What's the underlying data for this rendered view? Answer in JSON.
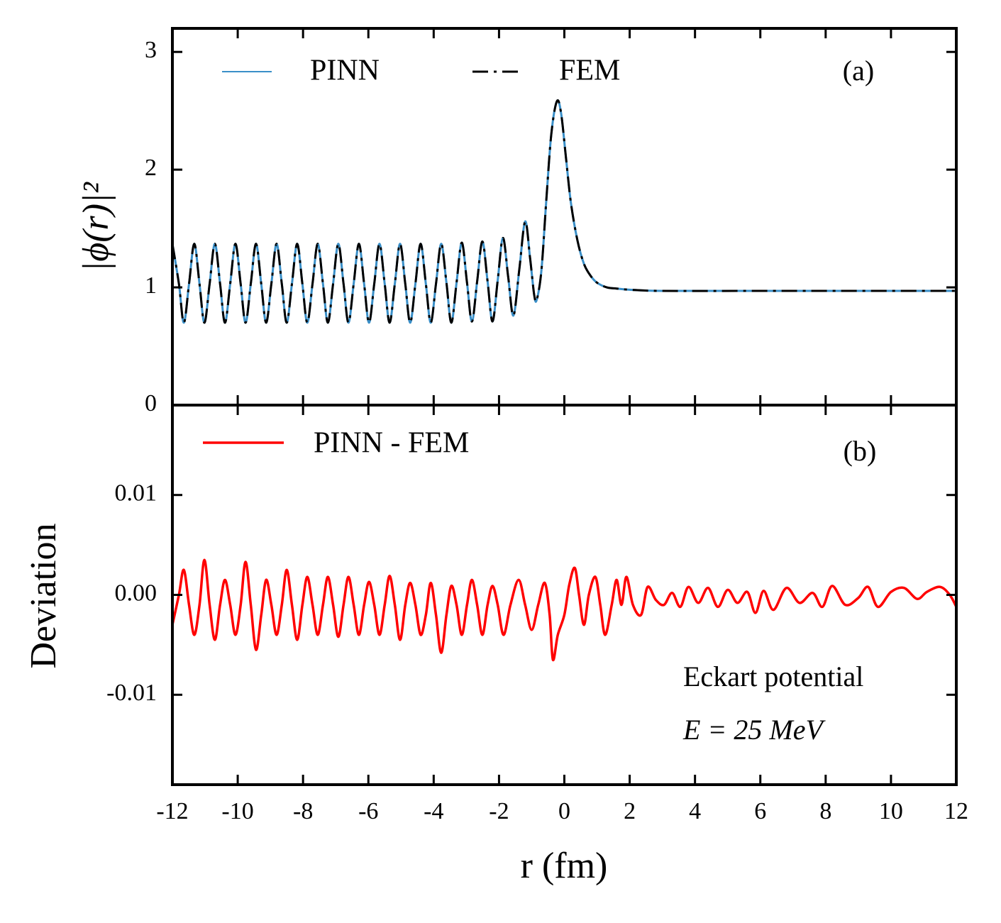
{
  "chart_data": [
    {
      "type": "line",
      "ylabel": "|ϕ(r)|²",
      "annotations": [
        "(a)"
      ],
      "xlim": [
        -12,
        12
      ],
      "ylim": [
        0,
        3.2
      ],
      "yticks": [
        0,
        1,
        2,
        3
      ],
      "x": [
        -12,
        -11.8,
        -11.65,
        -11.49,
        -11.33,
        -11.17,
        -11.02,
        -10.86,
        -10.7,
        -10.54,
        -10.39,
        -10.23,
        -10.07,
        -9.91,
        -9.76,
        -9.6,
        -9.44,
        -9.28,
        -9.13,
        -8.97,
        -8.81,
        -8.65,
        -8.5,
        -8.34,
        -8.18,
        -8.02,
        -7.87,
        -7.71,
        -7.55,
        -7.39,
        -7.24,
        -7.08,
        -6.92,
        -6.76,
        -6.61,
        -6.45,
        -6.29,
        -6.13,
        -5.98,
        -5.82,
        -5.66,
        -5.5,
        -5.35,
        -5.19,
        -5.03,
        -4.87,
        -4.72,
        -4.56,
        -4.4,
        -4.24,
        -4.09,
        -3.93,
        -3.77,
        -3.61,
        -3.46,
        -3.3,
        -3.14,
        -2.98,
        -2.83,
        -2.67,
        -2.51,
        -2.35,
        -2.2,
        -2.04,
        -1.88,
        -1.72,
        -1.56,
        -1.38,
        -1.2,
        -1.05,
        -0.92,
        -0.84,
        -0.7,
        -0.55,
        -0.4,
        -0.23,
        -0.1,
        0.05,
        0.2,
        0.4,
        0.6,
        0.8,
        1.0,
        1.3,
        1.6,
        2.0,
        3,
        6,
        12
      ],
      "series": [
        {
          "name": "PINN",
          "color": "#3a8fc8",
          "dash": false,
          "values": [
            1.37,
            1.03,
            0.7,
            1.03,
            1.37,
            1.03,
            0.7,
            1.03,
            1.37,
            1.03,
            0.7,
            1.03,
            1.37,
            1.03,
            0.7,
            1.03,
            1.37,
            1.03,
            0.7,
            1.03,
            1.37,
            1.03,
            0.7,
            1.03,
            1.37,
            1.03,
            0.7,
            1.03,
            1.37,
            1.03,
            0.7,
            1.03,
            1.37,
            1.03,
            0.7,
            1.03,
            1.37,
            1.03,
            0.7,
            1.03,
            1.37,
            1.03,
            0.7,
            1.03,
            1.37,
            1.03,
            0.7,
            1.03,
            1.37,
            1.03,
            0.7,
            1.03,
            1.37,
            1.04,
            0.7,
            1.04,
            1.38,
            1.04,
            0.71,
            1.05,
            1.39,
            1.05,
            0.71,
            1.06,
            1.42,
            1.09,
            0.76,
            1.15,
            1.56,
            1.25,
            0.93,
            0.9,
            1.15,
            1.75,
            2.3,
            2.58,
            2.48,
            2.1,
            1.72,
            1.4,
            1.2,
            1.1,
            1.04,
            1.0,
            0.99,
            0.98,
            0.97,
            0.97,
            0.97
          ]
        },
        {
          "name": "FEM",
          "color": "#000000",
          "dash": true,
          "values": [
            1.37,
            1.03,
            0.7,
            1.03,
            1.37,
            1.03,
            0.7,
            1.03,
            1.37,
            1.03,
            0.7,
            1.03,
            1.37,
            1.03,
            0.7,
            1.03,
            1.37,
            1.03,
            0.7,
            1.03,
            1.37,
            1.03,
            0.7,
            1.03,
            1.37,
            1.03,
            0.7,
            1.03,
            1.37,
            1.03,
            0.7,
            1.03,
            1.37,
            1.03,
            0.7,
            1.03,
            1.37,
            1.03,
            0.7,
            1.03,
            1.37,
            1.03,
            0.7,
            1.03,
            1.37,
            1.03,
            0.7,
            1.03,
            1.37,
            1.03,
            0.7,
            1.03,
            1.37,
            1.04,
            0.7,
            1.04,
            1.38,
            1.04,
            0.71,
            1.05,
            1.39,
            1.05,
            0.71,
            1.06,
            1.42,
            1.09,
            0.76,
            1.15,
            1.56,
            1.25,
            0.93,
            0.9,
            1.15,
            1.75,
            2.3,
            2.58,
            2.48,
            2.1,
            1.72,
            1.4,
            1.2,
            1.1,
            1.04,
            1.0,
            0.99,
            0.98,
            0.97,
            0.97,
            0.97
          ]
        }
      ]
    },
    {
      "type": "line",
      "ylabel": "Deviation",
      "xlabel": "r (fm)",
      "annotations": [
        "(b)",
        "Eckart potential",
        "E = 25 MeV"
      ],
      "xlim": [
        -12,
        12
      ],
      "xticks": [
        -12,
        -10,
        -8,
        -6,
        -4,
        -2,
        0,
        2,
        4,
        6,
        8,
        10,
        12
      ],
      "ylim": [
        -0.019,
        0.019
      ],
      "yticks": [
        -0.01,
        {
          "value": 0,
          "label": "0.00"
        },
        0.01
      ],
      "x": [
        -12,
        -11.8,
        -11.65,
        -11.49,
        -11.33,
        -11.17,
        -11.02,
        -10.86,
        -10.7,
        -10.54,
        -10.39,
        -10.23,
        -10.07,
        -9.91,
        -9.76,
        -9.6,
        -9.44,
        -9.28,
        -9.13,
        -8.97,
        -8.81,
        -8.65,
        -8.5,
        -8.34,
        -8.18,
        -8.02,
        -7.87,
        -7.71,
        -7.55,
        -7.39,
        -7.24,
        -7.08,
        -6.92,
        -6.76,
        -6.61,
        -6.45,
        -6.29,
        -6.13,
        -5.98,
        -5.82,
        -5.66,
        -5.5,
        -5.35,
        -5.19,
        -5.03,
        -4.87,
        -4.72,
        -4.56,
        -4.4,
        -4.24,
        -4.09,
        -3.93,
        -3.77,
        -3.61,
        -3.46,
        -3.3,
        -3.14,
        -2.98,
        -2.83,
        -2.67,
        -2.51,
        -2.35,
        -2.2,
        -2.04,
        -1.86,
        -1.65,
        -1.4,
        -1.2,
        -1.0,
        -0.8,
        -0.6,
        -0.45,
        -0.35,
        -0.2,
        0.0,
        0.15,
        0.32,
        0.45,
        0.6,
        0.75,
        0.95,
        1.1,
        1.25,
        1.45,
        1.6,
        1.75,
        1.9,
        2.1,
        2.35,
        2.55,
        2.8,
        3.05,
        3.3,
        3.55,
        3.8,
        4.1,
        4.4,
        4.7,
        5.0,
        5.3,
        5.6,
        5.85,
        6.1,
        6.4,
        6.8,
        7.2,
        7.6,
        7.9,
        8.2,
        8.6,
        9.0,
        9.3,
        9.6,
        10.0,
        10.4,
        10.8,
        11.1,
        11.5,
        11.8,
        12
      ],
      "series": [
        {
          "name": "PINN - FEM",
          "color": "#ff0000",
          "dash": false,
          "values": [
            -0.003,
            0.0,
            0.0025,
            -0.001,
            -0.004,
            -0.001,
            0.0035,
            -0.001,
            -0.0045,
            -0.001,
            0.0015,
            -0.001,
            -0.004,
            -0.001,
            0.0033,
            -0.001,
            -0.0055,
            -0.002,
            0.0015,
            -0.001,
            -0.004,
            -0.001,
            0.0025,
            -0.001,
            -0.0045,
            -0.001,
            0.0018,
            -0.001,
            -0.004,
            -0.001,
            0.0018,
            -0.001,
            -0.0042,
            -0.001,
            0.0018,
            -0.001,
            -0.004,
            -0.001,
            0.0013,
            -0.001,
            -0.004,
            -0.001,
            0.0019,
            -0.001,
            -0.0045,
            -0.001,
            0.0012,
            -0.001,
            -0.004,
            -0.002,
            0.0012,
            -0.002,
            -0.0058,
            -0.002,
            0.0009,
            -0.001,
            -0.004,
            -0.001,
            0.0015,
            -0.001,
            -0.004,
            -0.001,
            0.0009,
            -0.001,
            -0.004,
            -0.001,
            0.0015,
            -0.001,
            -0.0035,
            -0.001,
            0.0012,
            -0.002,
            -0.0065,
            -0.004,
            -0.002,
            0.001,
            0.0027,
            0,
            -0.003,
            0,
            0.0018,
            -0.001,
            -0.004,
            -0.001,
            0.0015,
            -0.001,
            0.0018,
            -0.001,
            -0.002,
            0.0008,
            -0.0005,
            -0.001,
            0.0002,
            -0.0012,
            0.0008,
            -0.0008,
            0.0007,
            -0.0012,
            0.0005,
            -0.0008,
            0.0003,
            -0.0018,
            0.0004,
            -0.0015,
            0.0007,
            -0.0008,
            0.0002,
            -0.0012,
            0.0009,
            -0.001,
            -0.0003,
            0.0008,
            -0.0012,
            0.0003,
            0.0007,
            -0.0004,
            0.0003,
            0.0008,
            0,
            -0.0012
          ]
        }
      ]
    }
  ]
}
